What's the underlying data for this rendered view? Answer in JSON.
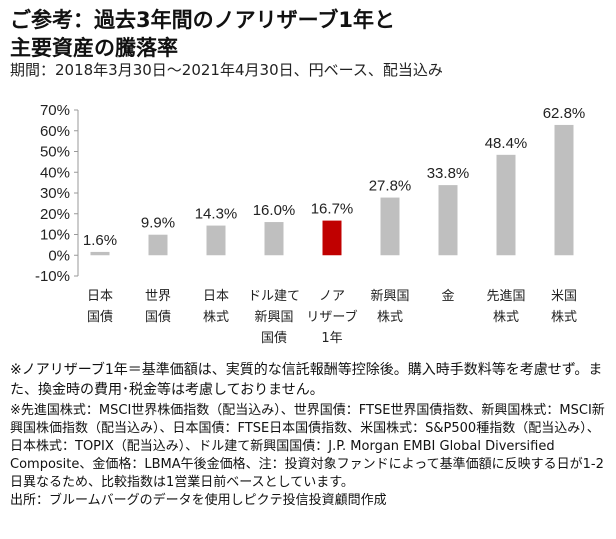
{
  "header": {
    "title_line1": "ご参考：過去3年間のノアリザーブ1年と",
    "title_line2": "主要資産の騰落率",
    "subtitle": "期間：2018年3月30日～2021年4月30日、円ベース、配当込み"
  },
  "chart_data": {
    "type": "bar",
    "categories": [
      [
        "日本",
        "国債"
      ],
      [
        "世界",
        "国債"
      ],
      [
        "日本",
        "株式"
      ],
      [
        "ドル建て",
        "新興国",
        "国債"
      ],
      [
        "ノア",
        "リザーブ",
        "1年"
      ],
      [
        "新興国",
        "株式"
      ],
      [
        "金"
      ],
      [
        "先進国",
        "株式"
      ],
      [
        "米国",
        "株式"
      ]
    ],
    "values": [
      1.6,
      9.9,
      14.3,
      16.0,
      16.7,
      27.8,
      33.8,
      48.4,
      62.8
    ],
    "value_labels": [
      "1.6%",
      "9.9%",
      "14.3%",
      "16.0%",
      "16.7%",
      "27.8%",
      "33.8%",
      "48.4%",
      "62.8%"
    ],
    "highlight_index": 4,
    "ylim": [
      -10,
      70
    ],
    "yticks": [
      70,
      60,
      50,
      40,
      30,
      20,
      10,
      0,
      -10
    ],
    "ytick_labels": [
      "70%",
      "60%",
      "50%",
      "40%",
      "30%",
      "20%",
      "10%",
      "0%",
      "-10%"
    ],
    "grid": false,
    "colors": {
      "bar": "#bfbfbf",
      "highlight": "#c00000",
      "axis": "#999999"
    }
  },
  "notes": {
    "line1": "※ノアリザーブ1年＝基準価額は、実質的な信託報酬等控除後。購入時手数料等を考慮せず。また、換金時の費用･税金等は考慮しておりません。",
    "line2": "※先進国株式：MSCI世界株価指数（配当込み）、世界国債：FTSE世界国債指数、新興国株式：MSCI新興国株価指数（配当込み）、日本国債：FTSE日本国債指数、米国株式：S&P500種指数（配当込み）、日本株式：TOPIX（配当込み）、ドル建て新興国国債：J.P. Morgan EMBI Global Diversified Composite、金価格：LBMA午後金価格、注：投資対象ファンドによって基準価額に反映する日が1-2日異なるため、比較指数は1営業日前ベースとしています。",
    "source": "出所：ブルームバーグのデータを使用しピクテ投信投資顧問作成"
  }
}
